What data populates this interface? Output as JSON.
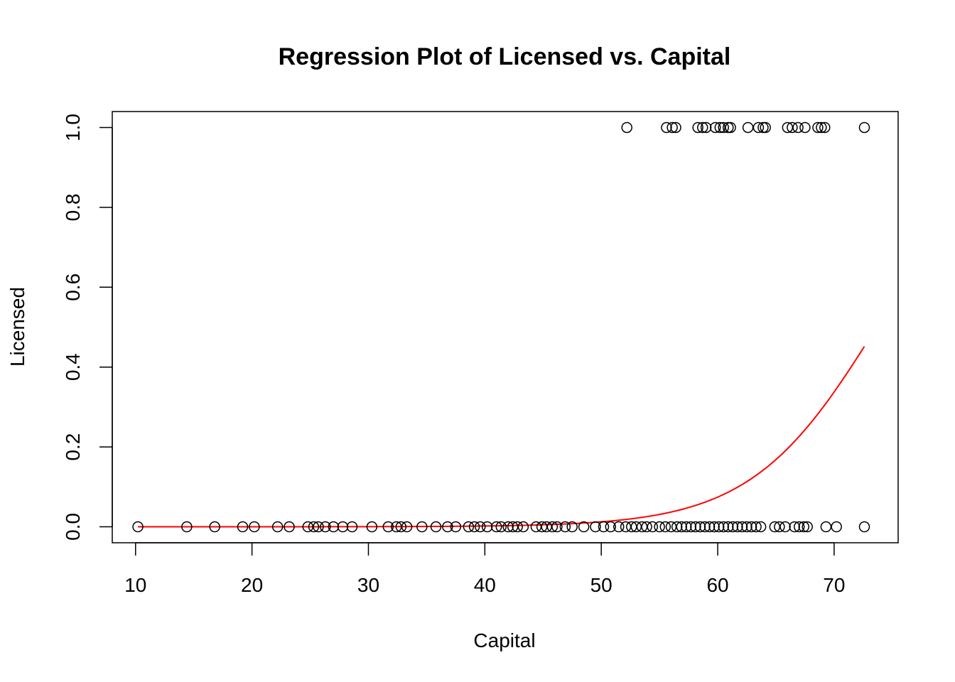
{
  "chart_data": {
    "type": "scatter",
    "title": "Regression Plot of Licensed vs. Capital",
    "xlabel": "Capital",
    "ylabel": "Licensed",
    "xlim": [
      8,
      75.5
    ],
    "ylim": [
      -0.04,
      1.04
    ],
    "xticks": [
      10,
      20,
      30,
      40,
      50,
      60,
      70
    ],
    "yticks": [
      0.0,
      0.2,
      0.4,
      0.6,
      0.8,
      1.0
    ],
    "xtick_labels": [
      "10",
      "20",
      "30",
      "40",
      "50",
      "60",
      "70"
    ],
    "ytick_labels": [
      "0.0",
      "0.2",
      "0.4",
      "0.6",
      "0.8",
      "1.0"
    ],
    "grid": false,
    "legend": "none",
    "colors": {
      "points": "#000000",
      "fit_line": "#ff0000"
    },
    "series": [
      {
        "kind": "points",
        "points_y1": [
          52.2,
          55.6,
          56.1,
          56.4,
          58.3,
          58.7,
          59.0,
          59.8,
          60.2,
          60.5,
          60.9,
          61.1,
          62.6,
          63.5,
          63.9,
          64.1,
          66.0,
          66.4,
          66.9,
          67.5,
          68.6,
          68.9,
          69.2,
          72.6
        ],
        "points_y0": [
          10.2,
          14.4,
          16.8,
          19.2,
          20.2,
          22.2,
          23.2,
          24.8,
          25.3,
          25.7,
          26.3,
          27.0,
          27.8,
          28.6,
          30.3,
          31.7,
          32.4,
          32.8,
          33.3,
          34.6,
          35.8,
          36.8,
          37.5,
          38.6,
          39.1,
          39.6,
          40.2,
          41.0,
          41.4,
          42.0,
          42.4,
          42.8,
          43.3,
          44.4,
          44.9,
          45.3,
          45.8,
          46.2,
          46.9,
          47.5,
          48.5,
          49.5,
          50.2,
          50.8,
          51.5,
          52.1,
          52.6,
          53.0,
          53.5,
          53.9,
          54.4,
          55.0,
          55.5,
          56.0,
          56.5,
          56.9,
          57.3,
          57.7,
          58.1,
          58.5,
          58.9,
          59.3,
          59.7,
          60.1,
          60.5,
          60.9,
          61.3,
          61.7,
          62.1,
          62.5,
          62.9,
          63.3,
          63.7,
          64.9,
          65.3,
          65.8,
          66.6,
          67.0,
          67.4,
          67.7,
          69.3,
          70.2,
          72.6
        ]
      },
      {
        "kind": "fit",
        "model": "logistic",
        "intercept": -13.61,
        "slope": 0.1848,
        "x_range": [
          10.2,
          72.6
        ]
      }
    ]
  }
}
